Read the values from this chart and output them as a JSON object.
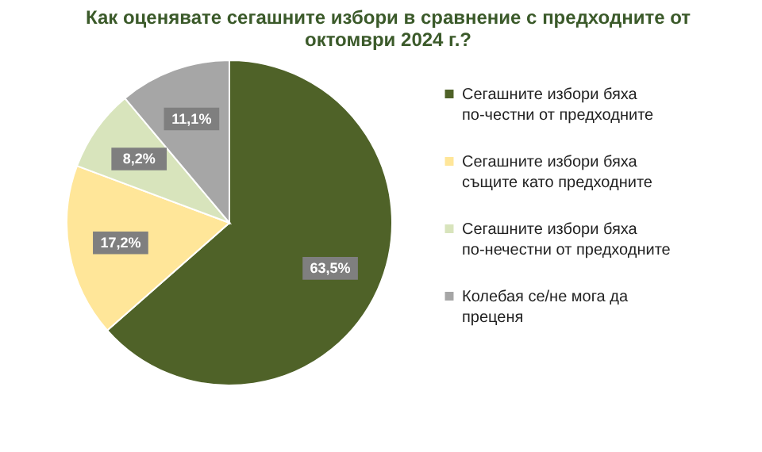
{
  "chart_data": {
    "type": "pie",
    "title": "Как оценявате сегашните избори в сравнение с предходните от октомври 2024 г.?",
    "categories": [
      "Сегашните избори бяха по-честни от предходните",
      "Сегашните избори бяха същите като предходните",
      "Сегашните избори бяха по-нечестни от предходните",
      "Колебая се/не мога да преценя"
    ],
    "values": [
      63.5,
      17.2,
      8.2,
      11.1
    ],
    "value_labels": [
      "63,5%",
      "17,2%",
      "8,2%",
      "11,1%"
    ],
    "colors": [
      "#4f6228",
      "#ffe699",
      "#d8e4bc",
      "#a6a6a6"
    ],
    "legend": "right"
  }
}
